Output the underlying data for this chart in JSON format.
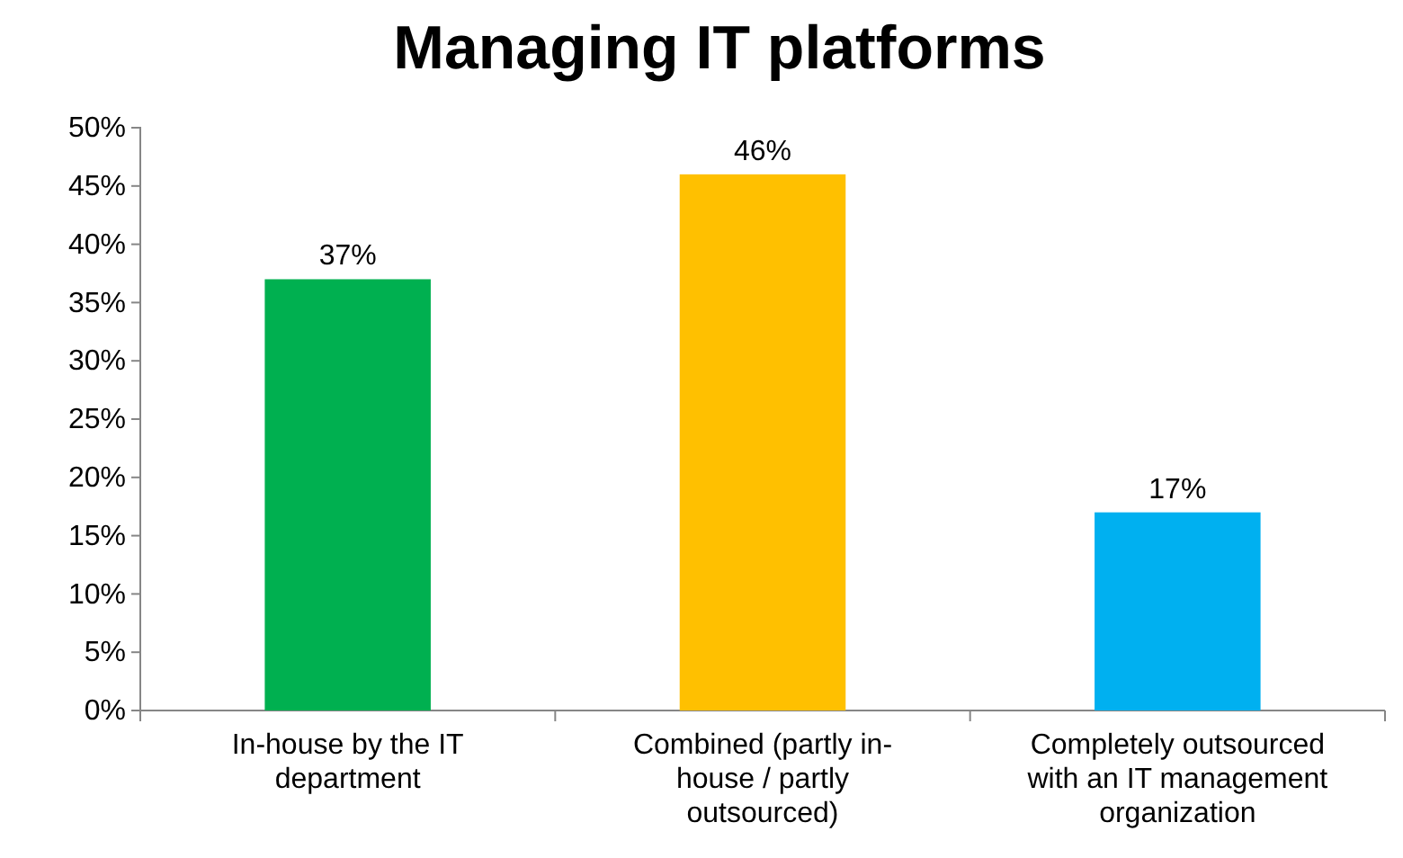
{
  "chart_data": {
    "type": "bar",
    "title": "Managing IT platforms",
    "categories": [
      "In-house by the IT department",
      "Combined (partly in-house / partly outsourced)",
      "Completely outsourced with an IT management organization"
    ],
    "values": [
      37,
      46,
      17
    ],
    "colors": [
      "#00b050",
      "#ffc000",
      "#00b0f0"
    ],
    "ylim": [
      0,
      50
    ],
    "yticks": [
      {
        "value": 0,
        "label": "0%"
      },
      {
        "value": 5,
        "label": "5%"
      },
      {
        "value": 10,
        "label": "10%"
      },
      {
        "value": 15,
        "label": "15%"
      },
      {
        "value": 20,
        "label": "20%"
      },
      {
        "value": 25,
        "label": "25%"
      },
      {
        "value": 30,
        "label": "30%"
      },
      {
        "value": 35,
        "label": "35%"
      },
      {
        "value": 40,
        "label": "40%"
      },
      {
        "value": 45,
        "label": "45%"
      },
      {
        "value": 50,
        "label": "50%"
      }
    ],
    "value_labels": [
      "37%",
      "46%",
      "17%"
    ],
    "grid": false
  }
}
